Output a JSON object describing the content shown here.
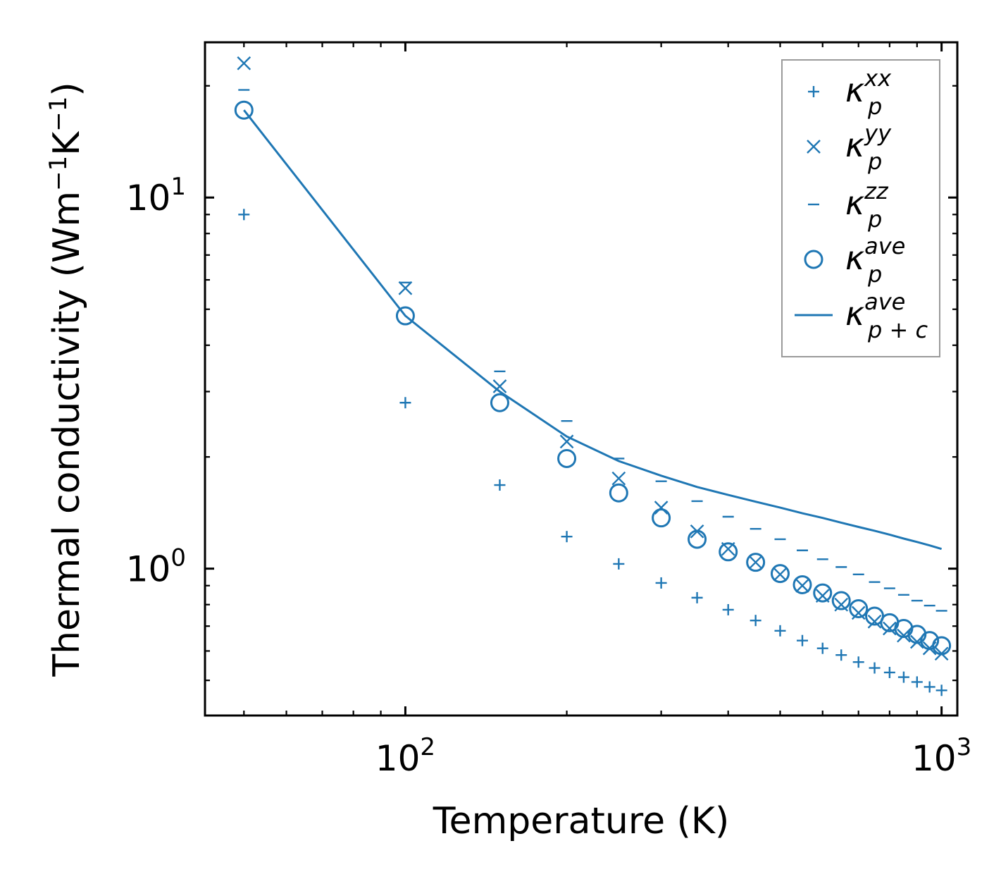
{
  "colors": {
    "series": "#1f77b4",
    "axis": "#000000",
    "legend_border": "#9a9a9a"
  },
  "chart_data": {
    "type": "scatter",
    "xscale": "log",
    "yscale": "log",
    "xlabel": "Temperature (K)",
    "ylabel": "Thermal conductivity (Wm",
    "ylabel_parts": {
      "base": "Thermal conductivity (Wm",
      "exp1": "−1",
      "mid": "K",
      "exp2": "−1",
      "end": ")"
    },
    "xlim": [
      42.3,
      1070
    ],
    "ylim": [
      0.402,
      26.2
    ],
    "x_ticks": [
      {
        "value": 100,
        "base": "10",
        "exp": "2"
      },
      {
        "value": 1000,
        "base": "10",
        "exp": "3"
      }
    ],
    "y_ticks": [
      {
        "value": 1,
        "base": "10",
        "exp": "0"
      },
      {
        "value": 10,
        "base": "10",
        "exp": "1"
      }
    ],
    "legend_position": "top-right",
    "x": [
      50,
      100,
      150,
      200,
      250,
      300,
      350,
      400,
      450,
      500,
      550,
      600,
      650,
      700,
      750,
      800,
      850,
      900,
      950,
      1000
    ],
    "series": [
      {
        "name": "kappa_p^xx",
        "label_base": "κ",
        "label_sub": "p",
        "label_sup": "xx",
        "marker": "plus",
        "values": [
          9.0,
          2.8,
          1.68,
          1.22,
          1.03,
          0.915,
          0.835,
          0.775,
          0.725,
          0.68,
          0.64,
          0.61,
          0.585,
          0.56,
          0.54,
          0.525,
          0.51,
          0.495,
          0.48,
          0.47
        ]
      },
      {
        "name": "kappa_p^yy",
        "label_base": "κ",
        "label_sub": "p",
        "label_sup": "yy",
        "marker": "x",
        "values": [
          23.0,
          5.7,
          3.1,
          2.2,
          1.75,
          1.46,
          1.26,
          1.13,
          1.04,
          0.965,
          0.9,
          0.845,
          0.8,
          0.76,
          0.72,
          0.69,
          0.66,
          0.635,
          0.61,
          0.59
        ]
      },
      {
        "name": "kappa_p^zz",
        "label_base": "κ",
        "label_sub": "p",
        "label_sup": "zz",
        "marker": "hline",
        "values": [
          19.5,
          5.9,
          3.4,
          2.5,
          1.98,
          1.72,
          1.52,
          1.38,
          1.28,
          1.2,
          1.12,
          1.06,
          1.01,
          0.965,
          0.92,
          0.885,
          0.85,
          0.82,
          0.795,
          0.77
        ]
      },
      {
        "name": "kappa_p^ave",
        "label_base": "κ",
        "label_sub": "p",
        "label_sup": "ave",
        "marker": "circle",
        "values": [
          17.2,
          4.8,
          2.8,
          1.98,
          1.6,
          1.37,
          1.2,
          1.11,
          1.04,
          0.97,
          0.905,
          0.86,
          0.82,
          0.78,
          0.745,
          0.715,
          0.69,
          0.665,
          0.64,
          0.62
        ]
      },
      {
        "name": "kappa_p+c^ave",
        "label_base": "κ",
        "label_sub": "p + c",
        "label_sup": "ave",
        "marker": "line",
        "values": [
          17.2,
          4.8,
          3.0,
          2.27,
          1.95,
          1.78,
          1.66,
          1.58,
          1.515,
          1.46,
          1.41,
          1.37,
          1.33,
          1.295,
          1.265,
          1.235,
          1.205,
          1.18,
          1.155,
          1.13
        ]
      }
    ]
  }
}
